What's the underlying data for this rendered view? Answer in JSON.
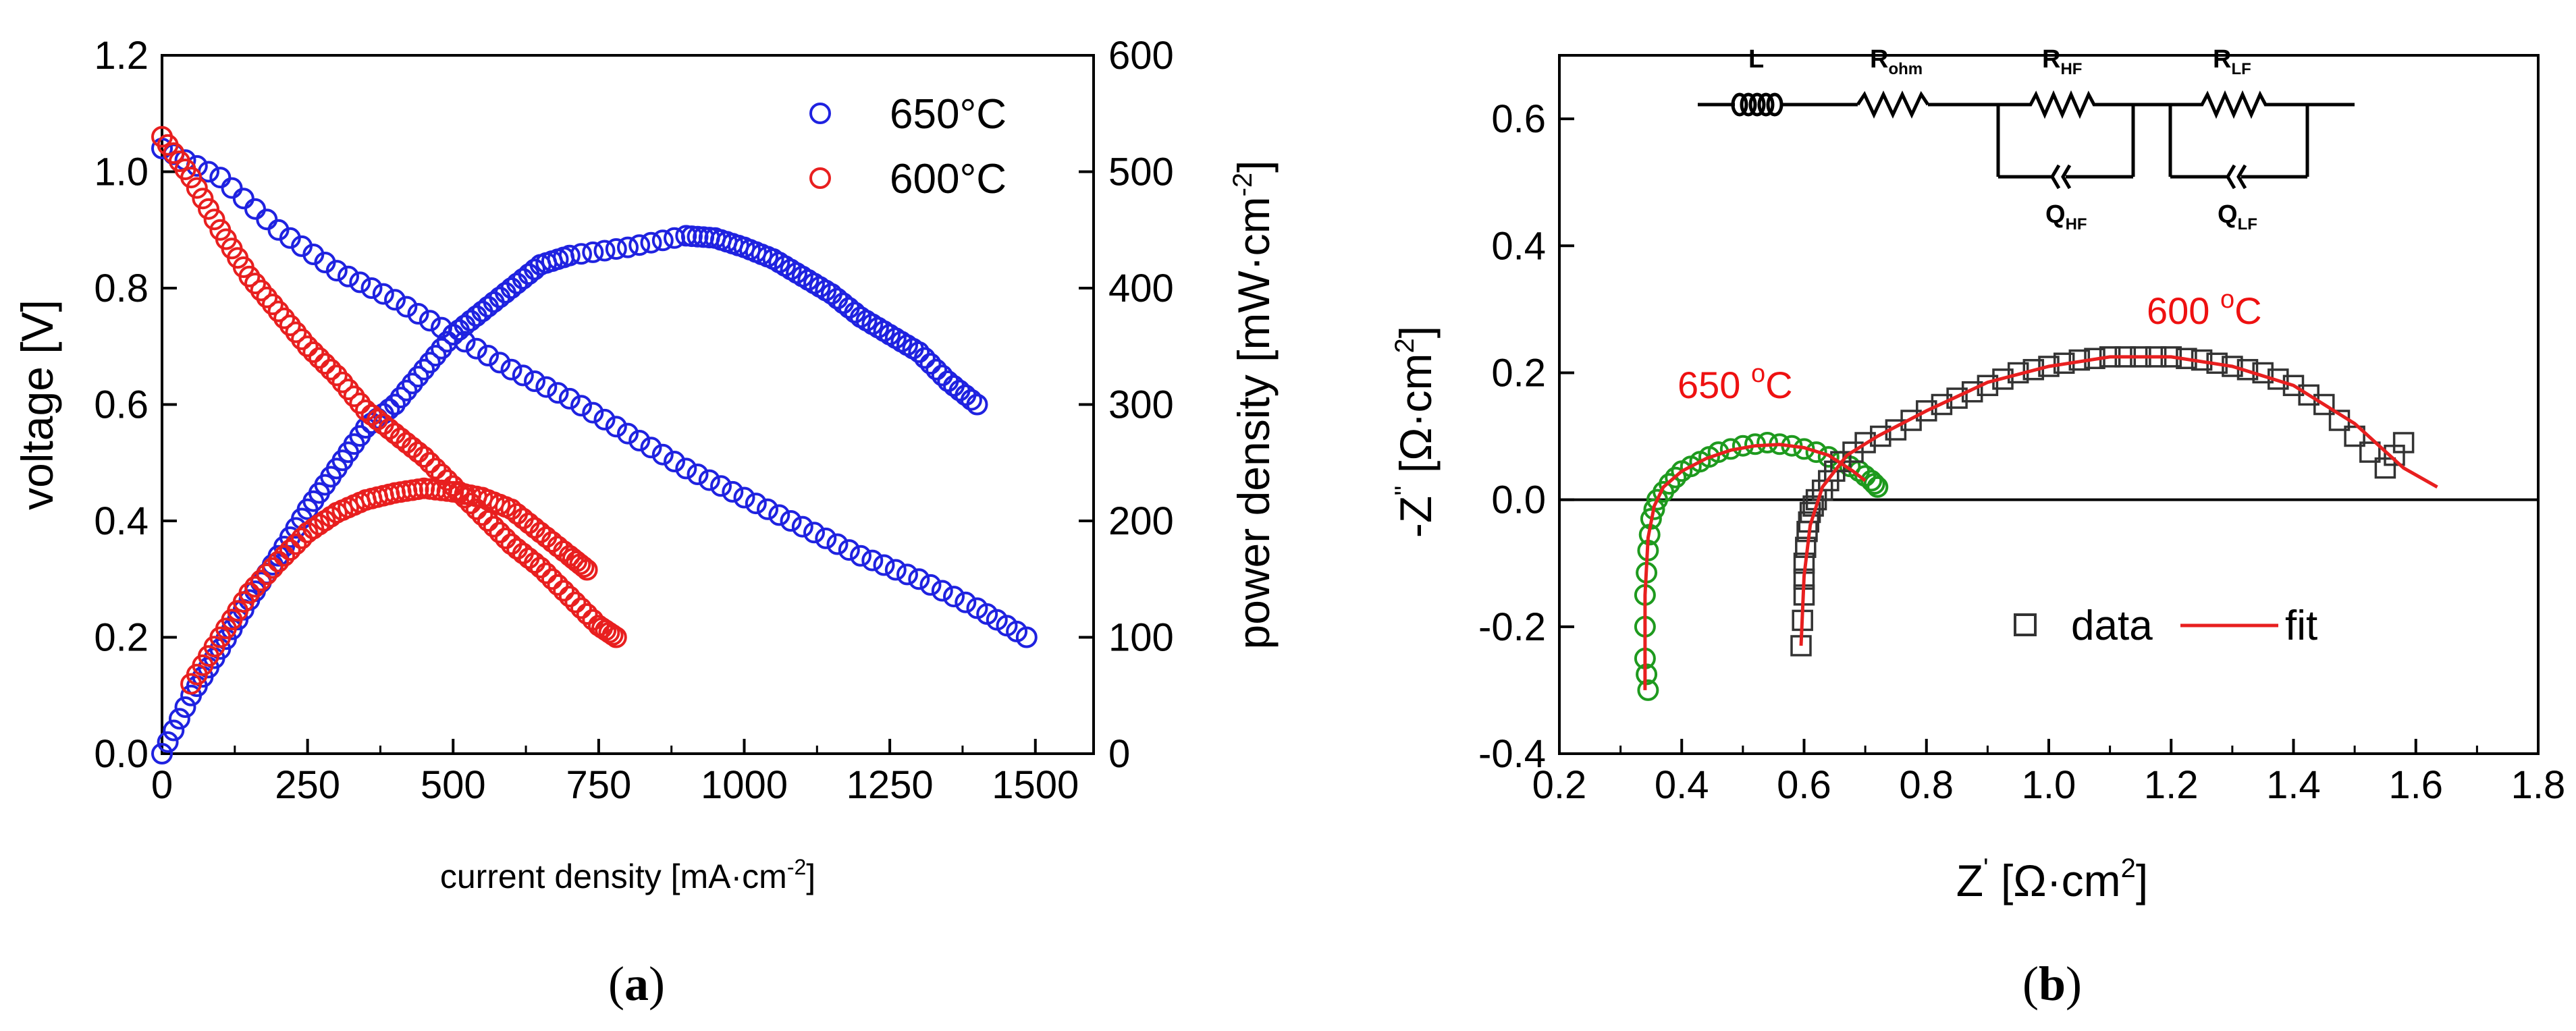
{
  "chart_data": [
    {
      "type": "scatter",
      "panel_label": "a",
      "xlabel": "current density [mA·cm",
      "xlabel_sup": "-2",
      "xlabel_close": "]",
      "ylabel": "voltage [V]",
      "y2label": "power density [mW·cm",
      "y2label_sup": "-2",
      "y2label_close": "]",
      "xlim": [
        0,
        1600
      ],
      "ylim": [
        0,
        1.2
      ],
      "y2lim": [
        0,
        600
      ],
      "xticks": [
        "0",
        "250",
        "500",
        "750",
        "1000",
        "1250",
        "1500"
      ],
      "yticks": [
        "0.0",
        "0.2",
        "0.4",
        "0.6",
        "0.8",
        "1.0",
        "1.2"
      ],
      "y2ticks": [
        "0",
        "100",
        "200",
        "300",
        "400",
        "500",
        "600"
      ],
      "legend": [
        {
          "label": "650°C",
          "color": "#1f22e0"
        },
        {
          "label": "600°C",
          "color": "#e81f1f"
        }
      ],
      "series": [
        {
          "name": "650°C voltage",
          "axis": "left",
          "color": "#1f22e0",
          "x": [
            0,
            100,
            200,
            300,
            400,
            500,
            600,
            700,
            800,
            900,
            1000,
            1100,
            1200,
            1300,
            1400,
            1485
          ],
          "y": [
            1.04,
            0.99,
            0.9,
            0.83,
            0.78,
            0.72,
            0.66,
            0.61,
            0.55,
            0.49,
            0.44,
            0.39,
            0.34,
            0.3,
            0.25,
            0.2
          ]
        },
        {
          "name": "650°C power",
          "axis": "right",
          "color": "#1f22e0",
          "x": [
            0,
            50,
            100,
            150,
            200,
            250,
            300,
            350,
            400,
            450,
            500,
            550,
            600,
            650,
            700,
            800,
            900,
            950,
            1000,
            1050,
            1100,
            1150,
            1200,
            1250,
            1300,
            1350,
            1400
          ],
          "y": [
            0,
            50,
            90,
            132,
            170,
            210,
            245,
            280,
            300,
            330,
            360,
            380,
            400,
            420,
            428,
            435,
            445,
            443,
            435,
            425,
            410,
            395,
            375,
            360,
            345,
            320,
            300
          ]
        },
        {
          "name": "600°C voltage",
          "axis": "left",
          "color": "#e81f1f",
          "x": [
            0,
            50,
            100,
            150,
            200,
            250,
            300,
            350,
            400,
            450,
            500,
            550,
            600,
            650,
            700,
            750,
            780
          ],
          "y": [
            1.06,
            0.99,
            0.9,
            0.82,
            0.76,
            0.7,
            0.65,
            0.59,
            0.55,
            0.51,
            0.46,
            0.41,
            0.36,
            0.32,
            0.27,
            0.22,
            0.2
          ]
        },
        {
          "name": "600°C power",
          "axis": "right",
          "color": "#e81f1f",
          "x": [
            50,
            100,
            150,
            200,
            250,
            300,
            350,
            400,
            450,
            500,
            550,
            600,
            650,
            700,
            730
          ],
          "y": [
            60,
            100,
            138,
            165,
            190,
            207,
            218,
            224,
            228,
            225,
            220,
            210,
            190,
            170,
            158
          ]
        }
      ]
    },
    {
      "type": "scatter",
      "panel_label": "b",
      "xlabel": "Z",
      "xlabel_sup": "'",
      "xlabel_unit": " [Ω·cm",
      "xlabel_unit_sup": "2",
      "xlabel_close": "]",
      "ylabel": "-Z",
      "ylabel_sup": "''",
      "ylabel_unit": " [Ω·cm",
      "ylabel_unit_sup": "2",
      "ylabel_close": "]",
      "xlim": [
        0.2,
        1.8
      ],
      "ylim": [
        -0.4,
        0.7
      ],
      "xticks": [
        "0.2",
        "0.4",
        "0.6",
        "0.8",
        "1.0",
        "1.2",
        "1.4",
        "1.6",
        "1.8"
      ],
      "yticks": [
        "-0.4",
        "-0.2",
        "0.0",
        "0.2",
        "0.4",
        "0.6"
      ],
      "annotations": [
        {
          "text": "650 ",
          "sup": "o",
          "unit": "C",
          "x": 0.5,
          "y": 0.16
        },
        {
          "text": "600 ",
          "sup": "o",
          "unit": "C",
          "x": 1.24,
          "y": 0.26
        }
      ],
      "legend": [
        {
          "label": "data",
          "marker": "square"
        },
        {
          "label": "fit",
          "line_color": "#e81f1f"
        }
      ],
      "circuit": {
        "L": "L",
        "R_ohm": "R",
        "R_ohm_sub": "ohm",
        "R_HF": "R",
        "R_HF_sub": "HF",
        "R_LF": "R",
        "R_LF_sub": "LF",
        "Q_HF": "Q",
        "Q_HF_sub": "HF",
        "Q_LF": "Q",
        "Q_LF_sub": "LF"
      },
      "series": [
        {
          "name": "650 °C data",
          "marker": "circle",
          "color": "#1e9a1e",
          "x": [
            0.345,
            0.34,
            0.34,
            0.345,
            0.35,
            0.36,
            0.38,
            0.4,
            0.43,
            0.46,
            0.5,
            0.54,
            0.58,
            0.62,
            0.66,
            0.69,
            0.71,
            0.72
          ],
          "y": [
            -0.3,
            -0.25,
            -0.15,
            -0.08,
            -0.03,
            0.0,
            0.025,
            0.045,
            0.06,
            0.075,
            0.085,
            0.09,
            0.085,
            0.075,
            0.06,
            0.045,
            0.03,
            0.02
          ]
        },
        {
          "name": "600 °C data",
          "marker": "square",
          "color": "#333333",
          "x": [
            0.595,
            0.6,
            0.6,
            0.605,
            0.61,
            0.62,
            0.64,
            0.66,
            0.7,
            0.75,
            0.8,
            0.85,
            0.9,
            0.95,
            1.0,
            1.05,
            1.1,
            1.15,
            1.2,
            1.25,
            1.3,
            1.35,
            1.4,
            1.45,
            1.5,
            1.55,
            1.58
          ],
          "y": [
            -0.23,
            -0.15,
            -0.1,
            -0.05,
            -0.02,
            0.0,
            0.03,
            0.06,
            0.09,
            0.11,
            0.14,
            0.16,
            0.18,
            0.2,
            0.21,
            0.22,
            0.225,
            0.225,
            0.225,
            0.22,
            0.21,
            0.2,
            0.18,
            0.15,
            0.1,
            0.05,
            0.09
          ]
        },
        {
          "name": "650 °C fit",
          "line": true,
          "color": "#e81f1f",
          "x": [
            0.34,
            0.34,
            0.345,
            0.355,
            0.37,
            0.4,
            0.44,
            0.48,
            0.52,
            0.56,
            0.6,
            0.64,
            0.68,
            0.7
          ],
          "y": [
            -0.3,
            -0.15,
            -0.06,
            -0.01,
            0.02,
            0.045,
            0.065,
            0.078,
            0.085,
            0.087,
            0.082,
            0.07,
            0.045,
            0.03
          ]
        },
        {
          "name": "600 °C fit",
          "line": true,
          "color": "#e81f1f",
          "x": [
            0.595,
            0.6,
            0.61,
            0.63,
            0.67,
            0.72,
            0.8,
            0.9,
            1.0,
            1.1,
            1.2,
            1.3,
            1.4,
            1.5,
            1.58,
            1.635
          ],
          "y": [
            -0.23,
            -0.12,
            -0.04,
            0.02,
            0.07,
            0.1,
            0.14,
            0.185,
            0.21,
            0.225,
            0.225,
            0.21,
            0.18,
            0.12,
            0.05,
            0.02
          ]
        }
      ]
    }
  ],
  "captions": {
    "a": "a",
    "b": "b"
  },
  "colors": {
    "blue": "#1f22e0",
    "red": "#e81f1f",
    "green": "#1e9a1e",
    "dark": "#333333"
  }
}
